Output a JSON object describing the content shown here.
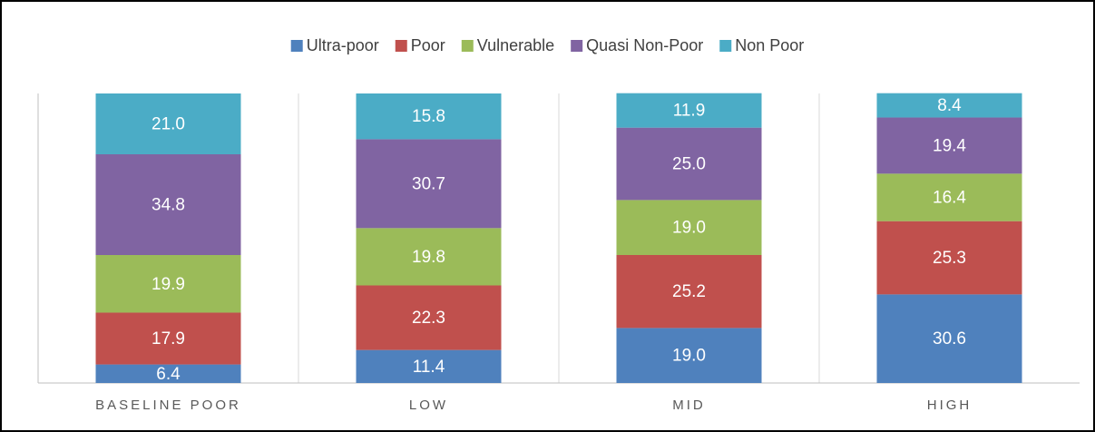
{
  "chart_data": {
    "type": "stacked_bar",
    "categories": [
      "BASELINE POOR",
      "LOW",
      "MID",
      "HIGH"
    ],
    "series": [
      {
        "name": "Ultra-poor",
        "color": "#4f81bd",
        "values": [
          6.4,
          11.4,
          19.0,
          30.6
        ],
        "value_labels": [
          "6.4",
          "11.4",
          "19.0",
          "30.6"
        ]
      },
      {
        "name": "Poor",
        "color": "#c0504d",
        "values": [
          17.9,
          22.3,
          25.2,
          25.3
        ]
      },
      {
        "name": "Vulnerable",
        "color": "#9bbb59",
        "values": [
          19.9,
          19.8,
          19.0,
          16.4
        ],
        "value_labels": [
          "19.9",
          "19.8",
          "19.0",
          "16.4"
        ]
      },
      {
        "name": "Quasi Non-Poor",
        "color": "#8064a2",
        "values": [
          34.8,
          30.7,
          25.0,
          19.4
        ],
        "value_labels": [
          "34.8",
          "30.7",
          "25.0",
          "19.4"
        ]
      },
      {
        "name": "Non Poor",
        "color": "#4bacc6",
        "values": [
          21.0,
          15.8,
          11.9,
          8.4
        ],
        "value_labels": [
          "21.0",
          "15.8",
          "11.9",
          "8.4"
        ]
      }
    ],
    "ylim": [
      0,
      100
    ],
    "legend": "top"
  }
}
